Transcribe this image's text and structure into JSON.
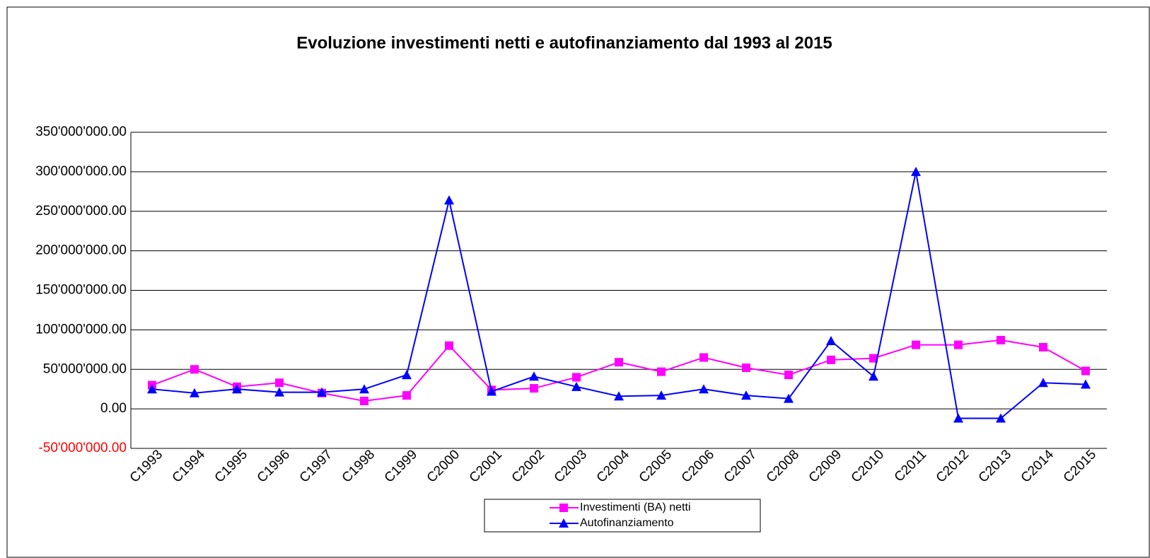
{
  "chart_data": {
    "type": "line",
    "title": "Evoluzione investimenti netti e autofinanziamento dal 1993 al 2015",
    "categories": [
      "C1993",
      "C1994",
      "C1995",
      "C1996",
      "C1997",
      "C1998",
      "C1999",
      "C2000",
      "C2001",
      "C2002",
      "C2003",
      "C2004",
      "C2005",
      "C2006",
      "C2007",
      "C2008",
      "C2009",
      "C2010",
      "C2011",
      "C2012",
      "C2013",
      "C2014",
      "C2015"
    ],
    "series": [
      {
        "name": "Investimenti (BA) netti",
        "color": "#ff00ff",
        "marker": "square",
        "values": [
          30000000,
          50000000,
          28000000,
          33000000,
          20000000,
          10000000,
          17000000,
          80000000,
          24000000,
          26000000,
          40000000,
          59000000,
          47000000,
          65000000,
          52000000,
          43000000,
          62000000,
          64000000,
          81000000,
          81000000,
          87000000,
          78000000,
          48000000
        ]
      },
      {
        "name": "Autofinanziamento",
        "color": "#0000ff",
        "marker": "triangle",
        "values": [
          25000000,
          20000000,
          25000000,
          21000000,
          21000000,
          25000000,
          43000000,
          264000000,
          22000000,
          41000000,
          28000000,
          16000000,
          17000000,
          25000000,
          17000000,
          13000000,
          86000000,
          41000000,
          300000000,
          -12000000,
          -12000000,
          33000000,
          31000000
        ]
      }
    ],
    "ylim": [
      -50000000,
      350000000
    ],
    "yticks": [
      {
        "value": -50000000,
        "label": "-50'000'000.00"
      },
      {
        "value": 0,
        "label": "0.00"
      },
      {
        "value": 50000000,
        "label": "50'000'000.00"
      },
      {
        "value": 100000000,
        "label": "100'000'000.00"
      },
      {
        "value": 150000000,
        "label": "150'000'000.00"
      },
      {
        "value": 200000000,
        "label": "200'000'000.00"
      },
      {
        "value": 250000000,
        "label": "250'000'000.00"
      },
      {
        "value": 300000000,
        "label": "300'000'000.00"
      },
      {
        "value": 350000000,
        "label": "350'000'000.00"
      }
    ],
    "negative_tick_color": "#ff0000",
    "grid": true,
    "legend": "bottom"
  }
}
